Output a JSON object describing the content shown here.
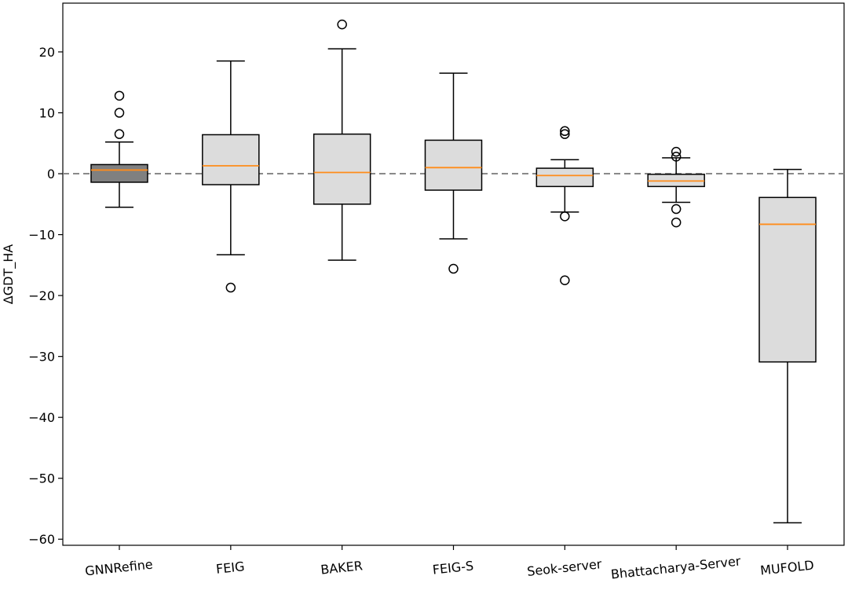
{
  "chart_data": {
    "type": "box",
    "title": "",
    "xlabel": "",
    "ylabel": "ΔGDT_HA",
    "ylim": [
      -61,
      28
    ],
    "yticks": [
      20,
      10,
      0,
      -10,
      -20,
      -30,
      -40,
      -50,
      -60
    ],
    "ytick_labels": [
      "20",
      "10",
      "0",
      "−10",
      "−20",
      "−30",
      "−40",
      "−50",
      "−60"
    ],
    "grid": false,
    "legend": "none",
    "reference_line": {
      "y": 0,
      "style": "dashed",
      "color": "#808080"
    },
    "colors": {
      "highlight_box": "#808080",
      "box": "#dcdcdc",
      "median": "#ff8c1a",
      "edge": "#000000"
    },
    "categories": [
      "GNNRefine",
      "FEIG",
      "BAKER",
      "FEIG-S",
      "Seok-server",
      "Bhattacharya-Server",
      "MUFOLD"
    ],
    "boxes": [
      {
        "name": "GNNRefine",
        "whisker_low": -5.5,
        "q1": -1.4,
        "median": 0.6,
        "q3": 1.5,
        "whisker_high": 5.2,
        "outliers": [
          6.5,
          10.0,
          12.8
        ],
        "highlight": true
      },
      {
        "name": "FEIG",
        "whisker_low": -13.3,
        "q1": -1.8,
        "median": 1.3,
        "q3": 6.4,
        "whisker_high": 18.5,
        "outliers": [
          -18.7
        ],
        "highlight": false
      },
      {
        "name": "BAKER",
        "whisker_low": -14.2,
        "q1": -5.0,
        "median": 0.2,
        "q3": 6.5,
        "whisker_high": 20.5,
        "outliers": [
          24.5
        ],
        "highlight": false
      },
      {
        "name": "FEIG-S",
        "whisker_low": -10.7,
        "q1": -2.7,
        "median": 1.0,
        "q3": 5.5,
        "whisker_high": 16.5,
        "outliers": [
          -15.6
        ],
        "highlight": false
      },
      {
        "name": "Seok-server",
        "whisker_low": -6.3,
        "q1": -2.1,
        "median": -0.3,
        "q3": 0.9,
        "whisker_high": 2.3,
        "outliers": [
          -17.5,
          -7.0,
          6.5,
          7.0
        ],
        "highlight": false
      },
      {
        "name": "Bhattacharya-Server",
        "whisker_low": -4.7,
        "q1": -2.1,
        "median": -1.2,
        "q3": -0.1,
        "whisker_high": 2.6,
        "outliers": [
          -8.0,
          -5.8,
          2.8,
          3.6
        ],
        "highlight": false
      },
      {
        "name": "MUFOLD",
        "whisker_low": -57.3,
        "q1": -30.9,
        "median": -8.3,
        "q3": -3.9,
        "whisker_high": 0.7,
        "outliers": [],
        "highlight": false
      }
    ]
  }
}
